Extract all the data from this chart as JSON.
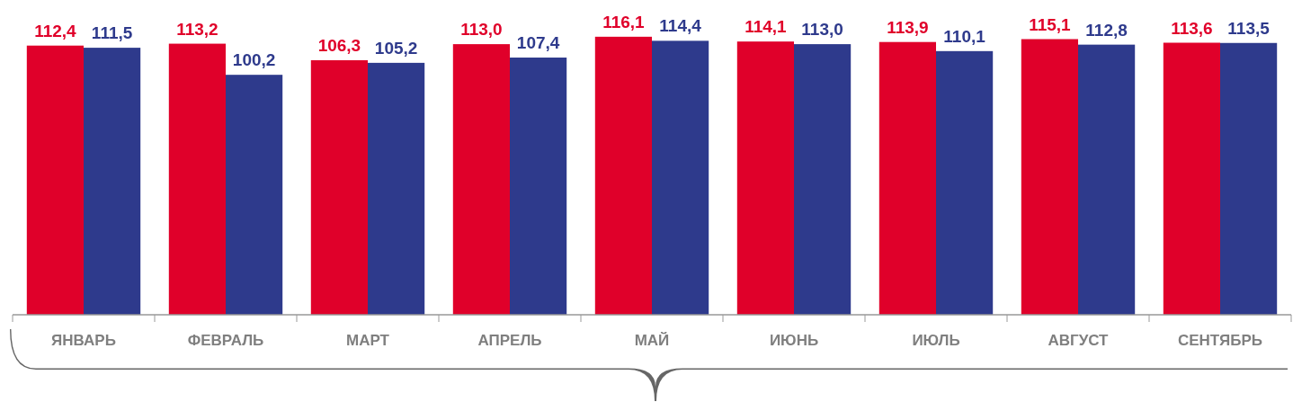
{
  "chart_data": {
    "type": "bar",
    "categories": [
      "ЯНВАРЬ",
      "ФЕВРАЛЬ",
      "МАРТ",
      "АПРЕЛЬ",
      "МАЙ",
      "ИЮНЬ",
      "ИЮЛЬ",
      "АВГУСТ",
      "СЕНТЯБРЬ"
    ],
    "grid": false,
    "series": [
      {
        "color": "#e0002a",
        "values": [
          112.4,
          113.2,
          106.3,
          113.0,
          116.1,
          114.1,
          113.9,
          115.1,
          113.6
        ],
        "value_labels": [
          "112,4",
          "113,2",
          "106,3",
          "113,0",
          "116,1",
          "114,1",
          "113,9",
          "115,1",
          "113,6"
        ]
      },
      {
        "color": "#2e3a8c",
        "values": [
          111.5,
          100.2,
          105.2,
          107.4,
          114.4,
          113.0,
          110.1,
          112.8,
          113.5
        ],
        "value_labels": [
          "111,5",
          "100,2",
          "105,2",
          "107,4",
          "114,4",
          "113,0",
          "110,1",
          "112,8",
          "113,5"
        ]
      }
    ]
  }
}
